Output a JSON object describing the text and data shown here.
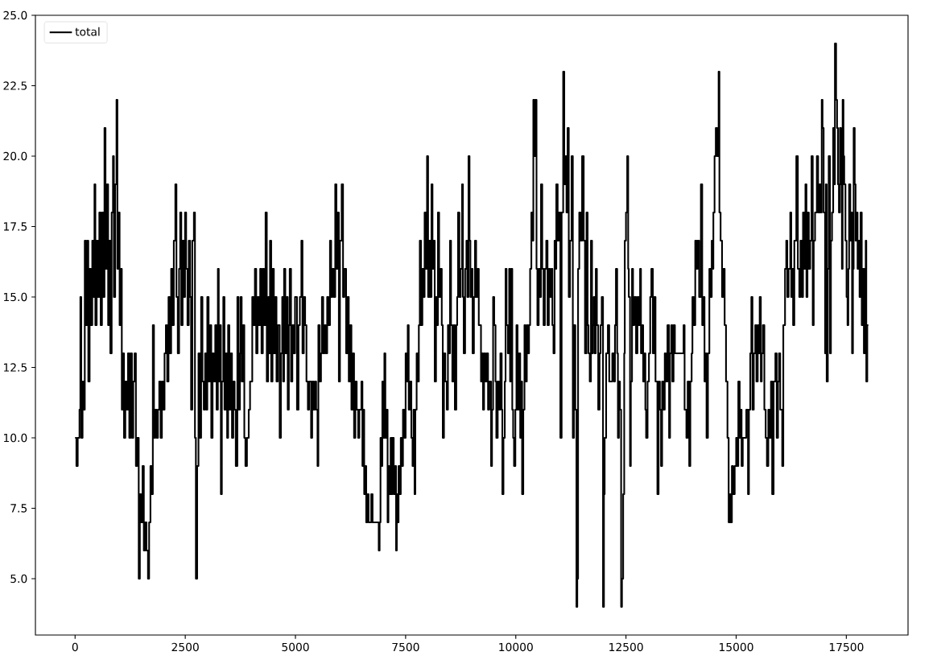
{
  "chart_data": {
    "type": "step",
    "x": [
      0,
      30,
      60,
      100,
      120,
      140,
      170,
      200,
      220,
      250,
      280,
      300,
      330,
      360,
      390,
      420,
      440,
      460,
      490,
      520,
      550,
      580,
      610,
      640,
      667,
      690,
      720,
      750,
      770,
      800,
      830,
      860,
      880,
      910,
      940,
      960,
      990,
      1010,
      1040,
      1060,
      1090,
      1110,
      1140,
      1170,
      1200,
      1230,
      1260,
      1290,
      1320,
      1350,
      1380,
      1410,
      1444,
      1470,
      1500,
      1530,
      1560,
      1590,
      1620,
      1654,
      1680,
      1710,
      1740,
      1764,
      1790,
      1820,
      1850,
      1880,
      1910,
      1940,
      1970,
      2000,
      2030,
      2060,
      2090,
      2120,
      2150,
      2180,
      2210,
      2240,
      2275,
      2300,
      2330,
      2360,
      2385,
      2410,
      2440,
      2470,
      2495,
      2520,
      2550,
      2580,
      2610,
      2632,
      2660,
      2696,
      2720,
      2741,
      2770,
      2800,
      2830,
      2860,
      2890,
      2920,
      2950,
      2980,
      3000,
      3030,
      3060,
      3090,
      3120,
      3150,
      3180,
      3210,
      3240,
      3260,
      3290,
      3308,
      3330,
      3363,
      3390,
      3420,
      3450,
      3472,
      3500,
      3530,
      3560,
      3590,
      3620,
      3646,
      3682,
      3710,
      3740,
      3756,
      3780,
      3810,
      3840,
      3865,
      3900,
      3940,
      3970,
      4002,
      4020,
      4050,
      4080,
      4110,
      4140,
      4170,
      4200,
      4230,
      4260,
      4290,
      4322,
      4350,
      4380,
      4400,
      4423,
      4450,
      4480,
      4510,
      4540,
      4570,
      4600,
      4642,
      4670,
      4700,
      4720,
      4742,
      4770,
      4800,
      4825,
      4850,
      4870,
      4900,
      4930,
      4960,
      4990,
      5035,
      5070,
      5100,
      5135,
      5160,
      5190,
      5220,
      5250,
      5282,
      5310,
      5355,
      5380,
      5410,
      5440,
      5470,
      5501,
      5520,
      5550,
      5580,
      5601,
      5630,
      5660,
      5690,
      5720,
      5750,
      5784,
      5810,
      5840,
      5870,
      5903,
      5930,
      5960,
      5985,
      6010,
      6049,
      6080,
      6110,
      6150,
      6180,
      6210,
      6240,
      6270,
      6300,
      6330,
      6360,
      6390,
      6424,
      6450,
      6497,
      6520,
      6540,
      6560,
      6590,
      6606,
      6630,
      6660,
      6698,
      6720,
      6750,
      6860,
      6890,
      6910,
      6930,
      6950,
      6972,
      6990,
      7018,
      7040,
      7060,
      7091,
      7110,
      7130,
      7160,
      7180,
      7200,
      7230,
      7260,
      7283,
      7300,
      7320,
      7340,
      7370,
      7390,
      7411,
      7440,
      7475,
      7500,
      7520,
      7548,
      7570,
      7600,
      7630,
      7657,
      7680,
      7703,
      7720,
      7750,
      7780,
      7800,
      7822,
      7850,
      7880,
      7910,
      7931,
      7960,
      7986,
      8010,
      8040,
      8060,
      8087,
      8110,
      8130,
      8160,
      8190,
      8210,
      8233,
      8260,
      8290,
      8320,
      8343,
      8370,
      8400,
      8434,
      8460,
      8480,
      8507,
      8530,
      8560,
      8590,
      8617,
      8650,
      8670,
      8690,
      8720,
      8750,
      8781,
      8800,
      8818,
      8850,
      8880,
      8900,
      8927,
      8950,
      8970,
      9000,
      9019,
      9050,
      9074,
      9100,
      9130,
      9160,
      9183,
      9210,
      9230,
      9256,
      9280,
      9310,
      9340,
      9370,
      9400,
      9439,
      9460,
      9485,
      9510,
      9540,
      9558,
      9590,
      9620,
      9650,
      9680,
      9695,
      9720,
      9750,
      9768,
      9790,
      9820,
      9850,
      9870,
      9896,
      9920,
      9940,
      9960,
      9990,
      10015,
      10040,
      10070,
      10100,
      10120,
      10143,
      10170,
      10197,
      10220,
      10250,
      10280,
      10300,
      10325,
      10353,
      10370,
      10398,
      10420,
      10444,
      10470,
      10490,
      10520,
      10550,
      10572,
      10600,
      10630,
      10660,
      10691,
      10720,
      10750,
      10780,
      10810,
      10830,
      10855,
      10880,
      10900,
      10919,
      10950,
      10980,
      11011,
      11040,
      11075,
      11100,
      11129,
      11150,
      11175,
      11202,
      11230,
      11266,
      11294,
      11320,
      11350,
      11376,
      11395,
      11413,
      11440,
      11470,
      11504,
      11541,
      11570,
      11605,
      11630,
      11650,
      11678,
      11705,
      11730,
      11750,
      11769,
      11790,
      11815,
      11840,
      11870,
      11900,
      11924,
      11950,
      11979,
      12000,
      12016,
      12050,
      12089,
      12120,
      12162,
      12190,
      12226,
      12250,
      12272,
      12300,
      12317,
      12340,
      12363,
      12390,
      12409,
      12436,
      12460,
      12473,
      12500,
      12528,
      12550,
      12564,
      12592,
      12610,
      12637,
      12660,
      12690,
      12728,
      12760,
      12790,
      12820,
      12840,
      12866,
      12890,
      12911,
      12940,
      12957,
      12990,
      13021,
      13050,
      13076,
      13110,
      13140,
      13170,
      13213,
      13240,
      13270,
      13295,
      13320,
      13350,
      13380,
      13410,
      13441,
      13478,
      13500,
      13530,
      13551,
      13580,
      13610,
      13700,
      13779,
      13807,
      13830,
      13871,
      13900,
      13935,
      13960,
      13990,
      14008,
      14040,
      14072,
      14100,
      14126,
      14160,
      14200,
      14230,
      14260,
      14282,
      14300,
      14328,
      14360,
      14392,
      14420,
      14446,
      14470,
      14483,
      14510,
      14538,
      14570,
      14602,
      14620,
      14647,
      14680,
      14710,
      14739,
      14770,
      14803,
      14830,
      14860,
      14880,
      14903,
      14930,
      14967,
      15000,
      15020,
      15049,
      15080,
      15100,
      15123,
      15150,
      15196,
      15230,
      15269,
      15290,
      15320,
      15345,
      15370,
      15400,
      15433,
      15460,
      15490,
      15510,
      15534,
      15560,
      15580,
      15607,
      15640,
      15670,
      15698,
      15730,
      15760,
      15790,
      15817,
      15850,
      15890,
      15920,
      15950,
      15972,
      16000,
      16045,
      16070,
      16109,
      16137,
      16160,
      16190,
      16228,
      16250,
      16270,
      16292,
      16320,
      16365,
      16400,
      16433,
      16460,
      16490,
      16517,
      16545,
      16572,
      16595,
      16618,
      16650,
      16680,
      16710,
      16738,
      16760,
      16790,
      16831,
      16860,
      16890,
      16915,
      16942,
      16960,
      16985,
      17018,
      17035,
      17054,
      17080,
      17100,
      17129,
      17150,
      17175,
      17202,
      17220,
      17241,
      17268,
      17290,
      17310,
      17332,
      17355,
      17380,
      17400,
      17416,
      17435,
      17452,
      17480,
      17505,
      17527,
      17545,
      17563,
      17590,
      17610,
      17630,
      17650,
      17666,
      17690,
      17710,
      17732,
      17755,
      17778,
      17800,
      17823,
      17850,
      17875,
      17898,
      17920,
      17940,
      17953,
      17975,
      18000
    ],
    "series": [
      {
        "name": "total",
        "color": "#000000",
        "values": [
          10,
          9,
          10,
          11,
          15,
          10,
          12,
          11,
          17,
          14,
          17,
          12,
          16,
          14,
          17,
          15,
          19,
          14,
          17,
          15,
          18,
          14,
          18,
          15,
          21,
          16,
          19,
          14,
          17,
          13,
          18,
          20,
          15,
          19,
          22,
          16,
          18,
          14,
          16,
          11,
          13,
          10,
          12,
          11,
          13,
          10,
          13,
          10,
          12,
          13,
          9,
          10,
          5,
          8,
          7,
          9,
          6,
          7,
          6,
          5,
          7,
          9,
          8,
          14,
          10,
          11,
          10,
          11,
          12,
          10,
          12,
          11,
          13,
          14,
          12,
          15,
          13,
          16,
          14,
          17,
          19,
          15,
          13,
          16,
          18,
          14,
          17,
          15,
          18,
          16,
          14,
          17,
          15,
          11,
          17,
          18,
          10,
          5,
          9,
          13,
          10,
          15,
          12,
          11,
          13,
          11,
          15,
          12,
          14,
          10,
          13,
          12,
          14,
          11,
          16,
          12,
          14,
          8,
          12,
          15,
          11,
          13,
          10,
          14,
          11,
          13,
          10,
          12,
          11,
          9,
          15,
          11,
          13,
          15,
          12,
          14,
          10,
          9,
          10,
          11,
          12,
          12,
          15,
          14,
          16,
          13,
          15,
          14,
          16,
          13,
          16,
          14,
          18,
          12,
          15,
          13,
          17,
          12,
          16,
          13,
          15,
          12,
          14,
          10,
          13,
          15,
          12,
          16,
          13,
          15,
          11,
          14,
          16,
          12,
          14,
          13,
          15,
          11,
          14,
          15,
          17,
          13,
          15,
          14,
          12,
          11,
          12,
          10,
          12,
          11,
          12,
          11,
          9,
          14,
          12,
          13,
          15,
          13,
          14,
          13,
          15,
          14,
          17,
          15,
          16,
          15,
          19,
          16,
          18,
          12,
          17,
          19,
          15,
          16,
          13,
          15,
          12,
          14,
          11,
          13,
          10,
          12,
          11,
          10,
          11,
          12,
          9,
          11,
          8,
          9,
          7,
          8,
          7,
          7,
          8,
          7,
          7,
          6,
          7,
          10,
          9,
          12,
          10,
          13,
          10,
          11,
          7,
          9,
          8,
          10,
          8,
          10,
          8,
          9,
          6,
          8,
          7,
          9,
          8,
          10,
          9,
          11,
          10,
          13,
          12,
          14,
          11,
          12,
          10,
          9,
          11,
          8,
          11,
          13,
          12,
          14,
          17,
          14,
          16,
          15,
          18,
          16,
          20,
          15,
          17,
          15,
          19,
          16,
          17,
          12,
          15,
          14,
          18,
          15,
          16,
          14,
          10,
          13,
          12,
          11,
          14,
          13,
          17,
          14,
          12,
          14,
          11,
          14,
          15,
          18,
          15,
          16,
          19,
          15,
          13,
          16,
          17,
          15,
          20,
          17,
          15,
          16,
          13,
          15,
          17,
          15,
          16,
          14,
          14,
          12,
          13,
          11,
          13,
          12,
          13,
          11,
          12,
          9,
          11,
          15,
          14,
          12,
          10,
          12,
          11,
          13,
          11,
          8,
          10,
          12,
          16,
          14,
          13,
          16,
          12,
          16,
          11,
          10,
          9,
          11,
          14,
          11,
          13,
          10,
          12,
          8,
          11,
          14,
          12,
          14,
          13,
          14,
          16,
          18,
          17,
          22,
          20,
          22,
          16,
          14,
          16,
          15,
          19,
          16,
          14,
          16,
          17,
          14,
          16,
          15,
          16,
          14,
          13,
          17,
          16,
          19,
          17,
          18,
          10,
          18,
          23,
          19,
          20,
          18,
          21,
          15,
          17,
          20,
          10,
          14,
          11,
          4,
          5,
          16,
          18,
          17,
          20,
          17,
          13,
          18,
          14,
          13,
          12,
          17,
          13,
          14,
          15,
          13,
          16,
          14,
          11,
          13,
          14,
          15,
          4,
          8,
          10,
          13,
          14,
          12,
          12,
          13,
          12,
          14,
          16,
          13,
          10,
          12,
          11,
          4,
          5,
          8,
          13,
          17,
          18,
          20,
          16,
          15,
          9,
          12,
          16,
          14,
          15,
          13,
          15,
          14,
          16,
          13,
          14,
          12,
          13,
          11,
          10,
          12,
          13,
          15,
          16,
          13,
          15,
          12,
          8,
          12,
          11,
          9,
          12,
          11,
          13,
          12,
          14,
          10,
          13,
          14,
          12,
          14,
          13,
          13,
          13,
          14,
          11,
          10,
          12,
          9,
          12,
          13,
          15,
          14,
          17,
          16,
          17,
          15,
          19,
          14,
          15,
          12,
          13,
          10,
          13,
          16,
          15,
          17,
          16,
          18,
          20,
          21,
          20,
          23,
          18,
          17,
          15,
          16,
          14,
          12,
          10,
          7,
          8,
          7,
          9,
          8,
          9,
          10,
          9,
          12,
          10,
          11,
          9,
          10,
          10,
          11,
          8,
          11,
          13,
          15,
          11,
          13,
          14,
          12,
          14,
          13,
          15,
          12,
          13,
          14,
          11,
          10,
          9,
          11,
          10,
          12,
          8,
          12,
          13,
          10,
          12,
          13,
          11,
          9,
          14,
          16,
          17,
          15,
          16,
          18,
          15,
          16,
          14,
          17,
          20,
          16,
          15,
          17,
          15,
          18,
          16,
          19,
          15,
          18,
          16,
          17,
          20,
          14,
          17,
          18,
          20,
          18,
          19,
          18,
          22,
          21,
          18,
          13,
          19,
          12,
          16,
          20,
          13,
          17,
          18,
          21,
          19,
          24,
          22,
          21,
          19,
          18,
          21,
          19,
          16,
          22,
          20,
          19,
          17,
          15,
          14,
          16,
          19,
          17,
          18,
          13,
          16,
          21,
          19,
          17,
          18,
          16,
          17,
          15,
          18,
          14,
          16,
          13,
          16,
          17,
          12,
          14,
          14
        ]
      }
    ],
    "xlim": [
      -900,
      18900
    ],
    "ylim": [
      3,
      25
    ],
    "xticks": [
      0,
      2500,
      5000,
      7500,
      10000,
      12500,
      15000,
      17500
    ],
    "yticks": [
      {
        "value": 5,
        "label": "5.0"
      },
      {
        "value": 7.5,
        "label": "7.5"
      },
      {
        "value": 10,
        "label": "10.0"
      },
      {
        "value": 12.5,
        "label": "12.5"
      },
      {
        "value": 15,
        "label": "15.0"
      },
      {
        "value": 17.5,
        "label": "17.5"
      },
      {
        "value": 20,
        "label": "20.0"
      },
      {
        "value": 22.5,
        "label": "22.5"
      },
      {
        "value": 25,
        "label": "25.0"
      }
    ],
    "legend": "top left",
    "line_style": "solid"
  }
}
